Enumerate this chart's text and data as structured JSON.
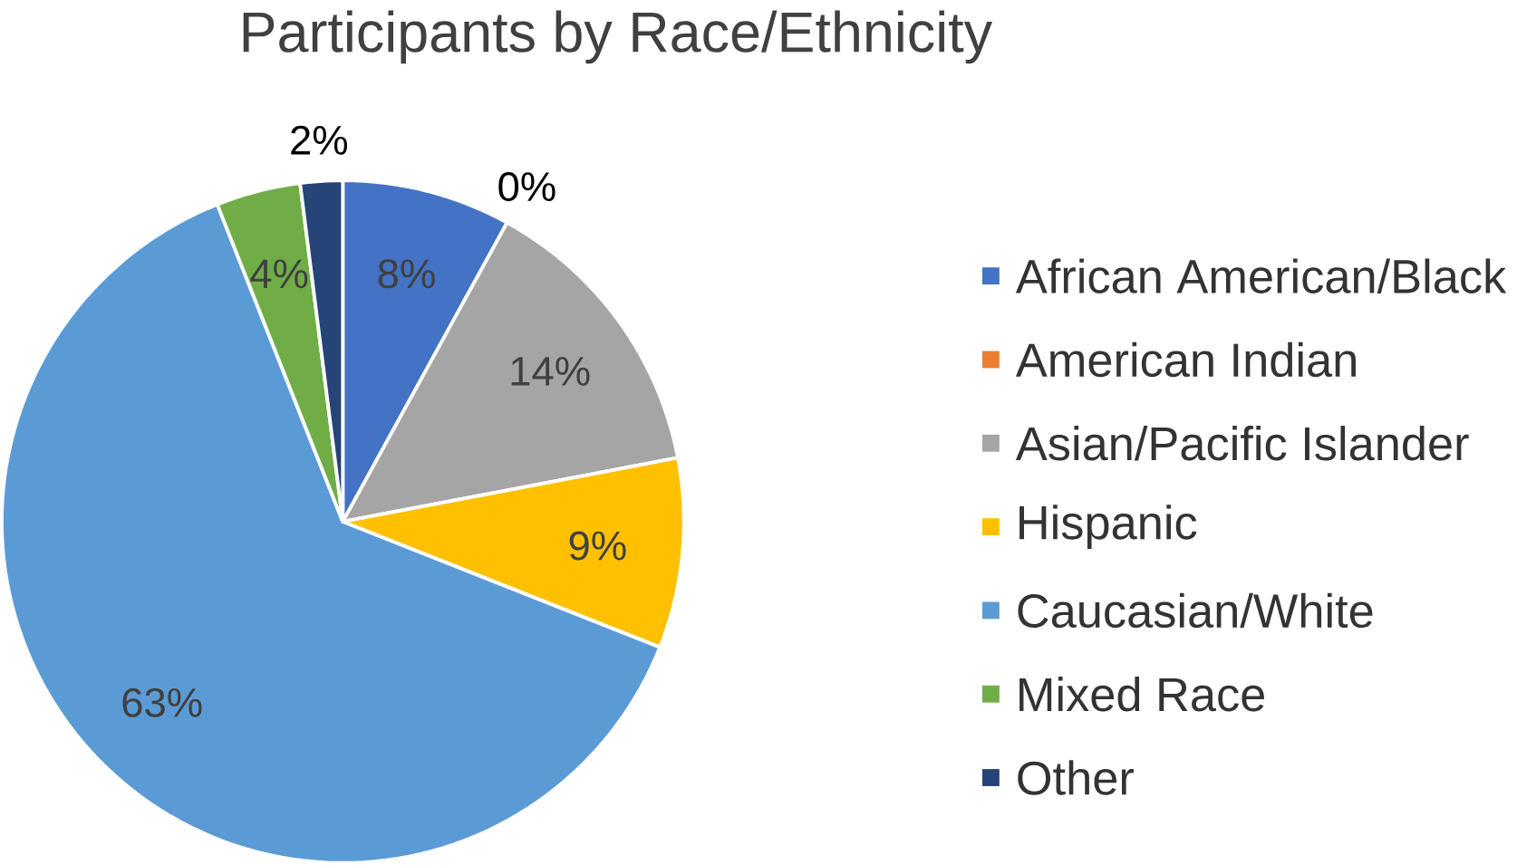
{
  "chart_data": {
    "type": "pie",
    "title": "Participants by Race/Ethnicity",
    "categories": [
      "African American/Black",
      "American Indian",
      "Asian/Pacific Islander",
      "Hispanic",
      "Caucasian/White",
      "Mixed Race",
      "Other"
    ],
    "values": [
      8,
      0,
      14,
      9,
      63,
      4,
      2
    ],
    "value_labels": [
      "8%",
      "0%",
      "14%",
      "9%",
      "63%",
      "4%",
      "2%"
    ],
    "colors": [
      "#4472c4",
      "#ed7d31",
      "#a5a5a5",
      "#ffc000",
      "#5b9bd5",
      "#70ad47",
      "#264478"
    ],
    "legend": "right"
  }
}
